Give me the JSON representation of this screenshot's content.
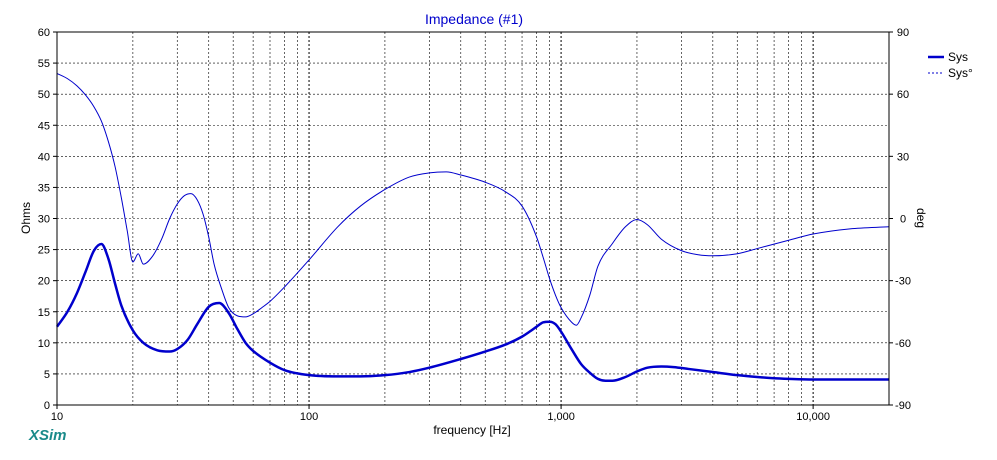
{
  "app": {
    "brand": "XSim"
  },
  "chart_data": {
    "type": "line",
    "title": "Impedance (#1)",
    "xlabel": "frequency [Hz]",
    "ylabel": "Ohms",
    "y2label": "deg",
    "xscale": "log",
    "xlim": [
      10,
      20000
    ],
    "ylim": [
      0,
      60
    ],
    "y2lim": [
      -90,
      90
    ],
    "x_tick_labels": [
      {
        "value": 10,
        "label": "10"
      },
      {
        "value": 100,
        "label": "100"
      },
      {
        "value": 1000,
        "label": "1,000"
      },
      {
        "value": 10000,
        "label": "10,000"
      }
    ],
    "y_ticks": [
      0,
      5,
      10,
      15,
      20,
      25,
      30,
      35,
      40,
      45,
      50,
      55,
      60
    ],
    "y2_ticks": [
      -90,
      -60,
      -30,
      0,
      30,
      60,
      90
    ],
    "grid": true,
    "legend": "top-right",
    "colors": {
      "series": "#0000cc",
      "title": "#0000cc",
      "grid": "#000000",
      "brand": "#1a8a8a"
    },
    "series": [
      {
        "name": "Sys",
        "axis": "left",
        "style": "solid",
        "x": [
          10,
          11,
          12,
          13,
          14,
          15,
          16,
          17,
          18,
          20,
          22,
          25,
          28,
          30,
          33,
          36,
          40,
          44,
          48,
          52,
          56,
          60,
          70,
          80,
          100,
          130,
          160,
          200,
          250,
          300,
          400,
          500,
          600,
          700,
          750,
          800,
          850,
          900,
          950,
          1000,
          1100,
          1200,
          1300,
          1400,
          1500,
          1600,
          1800,
          2000,
          2200,
          2500,
          2800,
          3200,
          4000,
          5000,
          6000,
          7000,
          8000,
          10000,
          14000,
          20000
        ],
        "y": [
          12.6,
          15.0,
          18.0,
          21.5,
          24.8,
          25.9,
          23.5,
          19.5,
          16.0,
          12.0,
          10.0,
          8.8,
          8.6,
          9.0,
          10.5,
          13.0,
          15.8,
          16.4,
          14.8,
          12.2,
          10.0,
          8.7,
          6.8,
          5.6,
          4.8,
          4.6,
          4.6,
          4.8,
          5.3,
          6.0,
          7.4,
          8.6,
          9.7,
          11.0,
          11.8,
          12.6,
          13.3,
          13.4,
          13.0,
          11.8,
          9.0,
          6.6,
          5.2,
          4.2,
          3.9,
          3.9,
          4.5,
          5.4,
          6.0,
          6.2,
          6.1,
          5.8,
          5.3,
          4.8,
          4.5,
          4.3,
          4.2,
          4.1,
          4.1,
          4.1
        ]
      },
      {
        "name": "Sys°",
        "axis": "right",
        "style": "dashed",
        "x": [
          10,
          11,
          12,
          13,
          14,
          15,
          16,
          17,
          18,
          19,
          20,
          21,
          22,
          24,
          26,
          28,
          30,
          32,
          34,
          36,
          38,
          40,
          42,
          45,
          48,
          52,
          56,
          60,
          65,
          70,
          80,
          100,
          130,
          160,
          200,
          250,
          300,
          350,
          400,
          500,
          600,
          700,
          800,
          850,
          900,
          950,
          1000,
          1100,
          1150,
          1200,
          1300,
          1400,
          1600,
          1800,
          2000,
          2200,
          2500,
          3000,
          3500,
          4000,
          5000,
          6000,
          8000,
          10000,
          14000,
          20000
        ],
        "y": [
          70.0,
          67.5,
          64.0,
          59.5,
          54.0,
          47.0,
          37.0,
          25.0,
          10.0,
          -6.0,
          -21.0,
          -17.0,
          -22.0,
          -18.0,
          -10.0,
          0.0,
          7.0,
          11.0,
          12.0,
          9.0,
          2.0,
          -9.0,
          -22.0,
          -34.0,
          -43.0,
          -47.0,
          -47.5,
          -46.0,
          -43.0,
          -40.0,
          -33.0,
          -20.0,
          -4.0,
          6.0,
          14.0,
          20.0,
          22.0,
          22.5,
          21.0,
          17.5,
          13.0,
          6.0,
          -9.0,
          -19.0,
          -29.0,
          -37.0,
          -43.0,
          -50.0,
          -51.5,
          -48.0,
          -37.0,
          -23.0,
          -12.0,
          -4.0,
          -0.5,
          -3.0,
          -10.0,
          -15.5,
          -17.5,
          -18.0,
          -17.0,
          -14.5,
          -10.5,
          -7.5,
          -5.0,
          -4.0
        ]
      }
    ]
  }
}
